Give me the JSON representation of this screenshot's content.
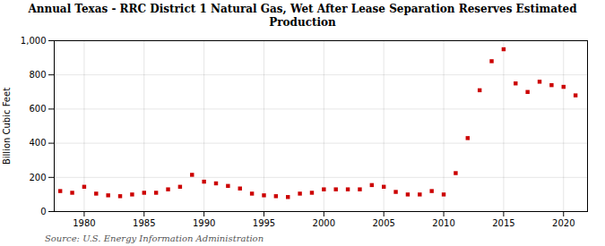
{
  "chart_data": {
    "type": "scatter",
    "title": "Annual Texas - RRC District 1 Natural Gas, Wet After Lease Separation Reserves Estimated\nProduction",
    "ylabel": "Billion Cubic Feet",
    "source": "Source: U.S. Energy Information Administration",
    "x": [
      1978,
      1979,
      1980,
      1981,
      1982,
      1983,
      1984,
      1985,
      1986,
      1987,
      1988,
      1989,
      1990,
      1991,
      1992,
      1993,
      1994,
      1995,
      1996,
      1997,
      1998,
      1999,
      2000,
      2001,
      2002,
      2003,
      2004,
      2005,
      2006,
      2007,
      2008,
      2009,
      2010,
      2011,
      2012,
      2013,
      2014,
      2015,
      2016,
      2017,
      2018,
      2019,
      2020,
      2021
    ],
    "values": [
      120,
      110,
      145,
      105,
      95,
      90,
      100,
      110,
      110,
      130,
      145,
      215,
      175,
      165,
      150,
      135,
      105,
      95,
      90,
      85,
      105,
      110,
      130,
      130,
      130,
      130,
      155,
      145,
      115,
      100,
      100,
      120,
      100,
      225,
      430,
      710,
      880,
      950,
      750,
      700,
      760,
      740,
      730,
      680
    ],
    "color": "#cc0000",
    "marker": "square",
    "xlim": [
      1977.5,
      2022
    ],
    "xticks": [
      1980,
      1985,
      1990,
      1995,
      2000,
      2005,
      2010,
      2015,
      2020
    ],
    "ylim": [
      0,
      1000
    ],
    "yticks": [
      0,
      200,
      400,
      600,
      800,
      {
        "value": 1000,
        "label": "1,000"
      }
    ],
    "grid": true
  }
}
